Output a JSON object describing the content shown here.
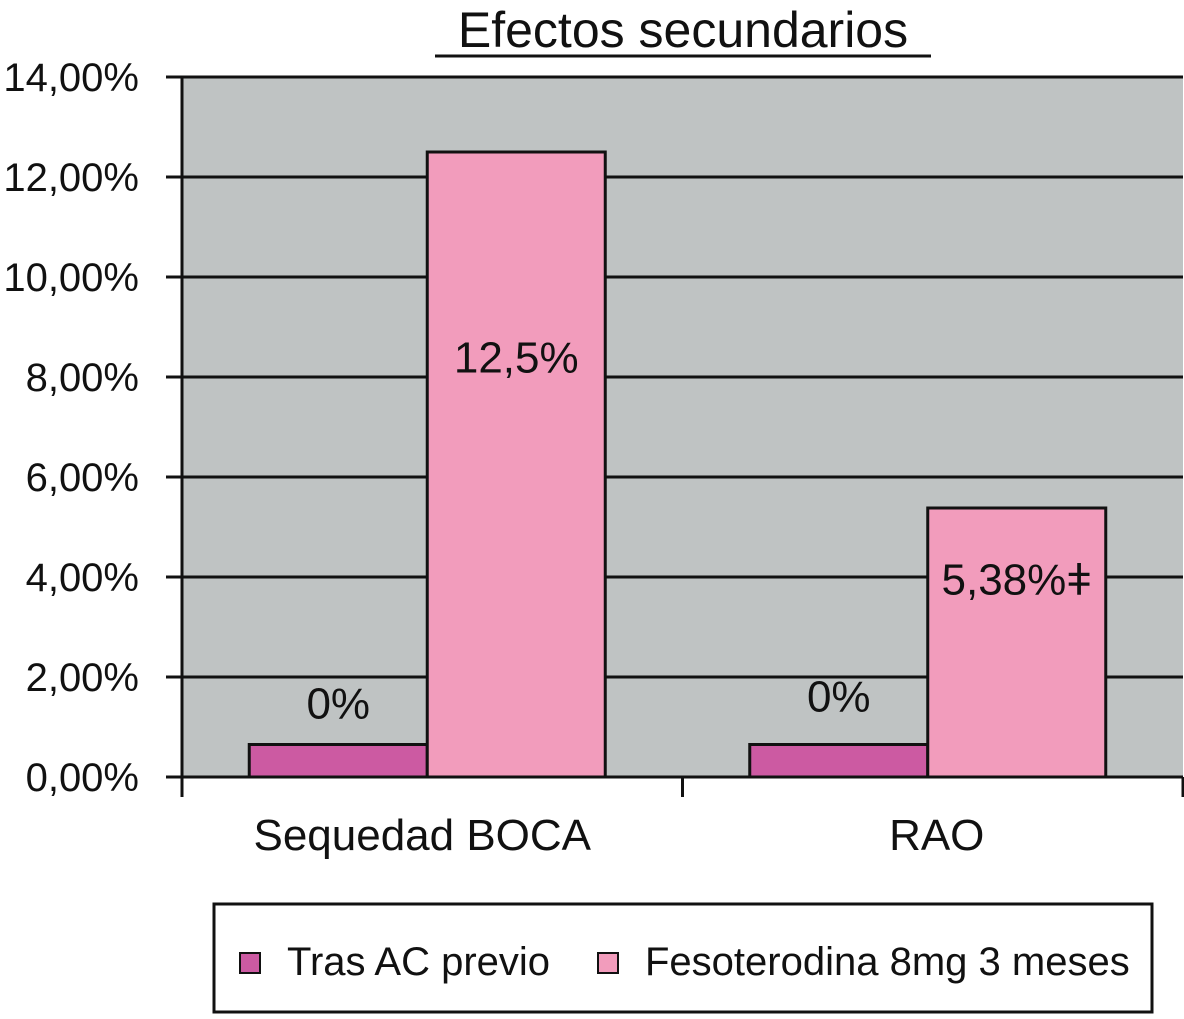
{
  "chart_data": {
    "type": "bar",
    "title": "Efectos secundarios",
    "xlabel": "",
    "ylabel": "",
    "categories": [
      "Sequedad BOCA",
      "RAO"
    ],
    "series": [
      {
        "name": "Tras AC previo",
        "color": "#cc5aa2",
        "values": [
          0,
          0
        ],
        "labels": [
          "0%",
          "0%"
        ]
      },
      {
        "name": "Fesoterodina 8mg 3 meses",
        "color": "#f29cbc",
        "values": [
          12.5,
          5.38
        ],
        "labels": [
          "12,5%",
          "5,38%ǂ"
        ]
      }
    ],
    "ylim": [
      0,
      14
    ],
    "yticks": [
      0,
      2,
      4,
      6,
      8,
      10,
      12,
      14
    ],
    "ytick_labels": [
      "0,00%",
      "2,00%",
      "4,00%",
      "6,00%",
      "8,00%",
      "10,00%",
      "12,00%",
      "14,00%"
    ],
    "grid": true,
    "legend_position": "bottom",
    "plot_background": "#bfc3c3"
  }
}
